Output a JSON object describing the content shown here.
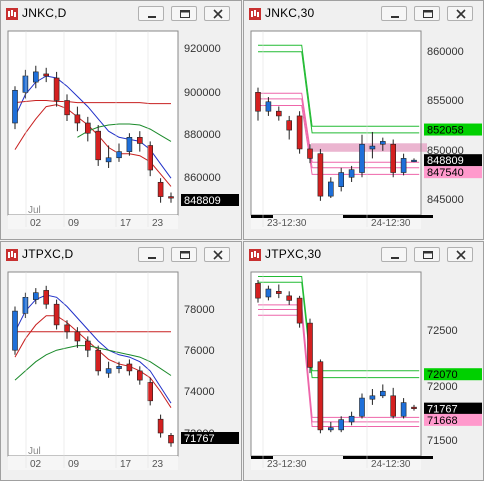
{
  "colors": {
    "background": "#ffffff",
    "up_candle": "#1e6fd9",
    "down_candle": "#d42020",
    "ma_blue": "#2030c8",
    "ma_red": "#c82020",
    "ma_green": "#1a8a2a",
    "band_green": "#22bb33",
    "band_pink": "#ee66aa",
    "label_green_bg": "#00d000",
    "label_pink_bg": "#ff99cc",
    "label_black_bg": "#000000",
    "label_black_fg": "#ffffff"
  },
  "window_controls": [
    "minimize-icon",
    "restore-icon",
    "close-icon"
  ],
  "windows": [
    {
      "title": "JNKC,D",
      "x_labels": [
        "02",
        "09",
        "17",
        "23"
      ],
      "x_top_label": "Jul",
      "y_labels": [
        "920000",
        "900000",
        "880000",
        "860000"
      ],
      "price_labels": [
        {
          "text": "848809",
          "style": "black"
        }
      ],
      "chart_data": {
        "type": "candlestick",
        "y_range": [
          840000,
          930000
        ],
        "candles": [
          [
            885000,
            901000,
            882000,
            903000
          ],
          [
            900000,
            908000,
            897000,
            911000
          ],
          [
            905000,
            910000,
            902000,
            913000
          ],
          [
            909000,
            908000,
            905000,
            912000
          ],
          [
            907000,
            896000,
            893000,
            910000
          ],
          [
            896000,
            889000,
            886000,
            899000
          ],
          [
            889000,
            885000,
            881000,
            893000
          ],
          [
            885000,
            880000,
            876000,
            888000
          ],
          [
            881000,
            867000,
            864000,
            884000
          ],
          [
            866000,
            868000,
            863000,
            874000
          ],
          [
            868000,
            871000,
            866000,
            875000
          ],
          [
            871000,
            878000,
            869000,
            880000
          ],
          [
            878000,
            875000,
            871000,
            881000
          ],
          [
            874000,
            862000,
            859000,
            876000
          ],
          [
            856000,
            849000,
            846000,
            858000
          ],
          [
            849000,
            848809,
            846000,
            851000
          ]
        ],
        "lines": [
          {
            "color": "ma_blue",
            "values": [
              888000,
              899000,
              905000,
              908000,
              907000,
              903000,
              898000,
              893000,
              887000,
              881000,
              878000,
              877000,
              876000,
              872000,
              865000,
              858000
            ]
          },
          {
            "color": "ma_red",
            "values": [
              872000,
              880000,
              887000,
              893000,
              894000,
              892000,
              888000,
              884000,
              879000,
              873000,
              870000,
              870000,
              869000,
              866000,
              860000,
              854000
            ]
          },
          {
            "color": "ma_red",
            "values": [
              895000,
              895500,
              896000,
              896000,
              895500,
              895500,
              895000,
              895000,
              895000,
              895000,
              895000,
              895000,
              895000,
              894500,
              894500,
              894500
            ]
          },
          {
            "color": "ma_green",
            "values": [
              null,
              null,
              null,
              null,
              null,
              null,
              878000,
              881000,
              883000,
              884000,
              884500,
              884500,
              884000,
              882000,
              879000,
              876000
            ]
          }
        ]
      }
    },
    {
      "title": "JNKC,30",
      "x_labels": [
        "23-12:30",
        "24-12:30"
      ],
      "x_top_label": "",
      "y_labels": [
        "860000",
        "855000",
        "850000",
        "845000"
      ],
      "price_labels": [
        {
          "text": "852058",
          "style": "green",
          "value": 852058
        },
        {
          "text": "848809",
          "style": "black",
          "value": 848809
        },
        {
          "text": "847540",
          "style": "pink",
          "value": 847540
        }
      ],
      "chart_data": {
        "type": "candlestick",
        "y_range": [
          843000,
          862500
        ],
        "shade_band": [
          849700,
          850600
        ],
        "candles": [
          [
            856000,
            854000,
            853000,
            856500
          ],
          [
            854000,
            855000,
            853500,
            855500
          ],
          [
            854000,
            853500,
            853000,
            854500
          ],
          [
            853000,
            852000,
            851000,
            853500
          ],
          [
            853500,
            850000,
            849500,
            854000
          ],
          [
            850000,
            849000,
            848500,
            850500
          ],
          [
            849500,
            845000,
            844500,
            850000
          ],
          [
            845000,
            846500,
            844800,
            847000
          ],
          [
            846000,
            847500,
            845500,
            848000
          ],
          [
            847000,
            847800,
            846500,
            848200
          ],
          [
            847500,
            850500,
            847000,
            851500
          ],
          [
            850000,
            850300,
            849000,
            851800
          ],
          [
            850500,
            850800,
            849800,
            851200
          ],
          [
            850500,
            847500,
            847000,
            851000
          ],
          [
            847500,
            849000,
            847200,
            849500
          ],
          [
            848800,
            848809,
            848600,
            849000
          ]
        ],
        "step_lines": [
          {
            "color": "band_green",
            "points": [
              [
                0,
                861000
              ],
              [
                4.2,
                861000
              ],
              [
                5.2,
                852400
              ],
              [
                15.5,
                852400
              ]
            ]
          },
          {
            "color": "band_green",
            "points": [
              [
                0,
                860300
              ],
              [
                4.2,
                860300
              ],
              [
                5.2,
                851700
              ],
              [
                15.5,
                851700
              ]
            ]
          },
          {
            "color": "band_pink",
            "points": [
              [
                0,
                855900
              ],
              [
                4.2,
                855900
              ],
              [
                5.2,
                848600
              ],
              [
                15.5,
                848600
              ]
            ]
          },
          {
            "color": "band_pink",
            "points": [
              [
                0,
                855300
              ],
              [
                4.2,
                855300
              ],
              [
                5.2,
                848000
              ],
              [
                15.5,
                848000
              ]
            ]
          },
          {
            "color": "band_pink",
            "points": [
              [
                0,
                854600
              ],
              [
                4.2,
                854600
              ],
              [
                5.2,
                847300
              ],
              [
                15.5,
                847300
              ]
            ]
          }
        ]
      }
    },
    {
      "title": "JTPXC,D",
      "x_labels": [
        "02",
        "09",
        "17",
        "23"
      ],
      "x_top_label": "Jul",
      "y_labels": [
        "78000",
        "76000",
        "74000",
        "72000"
      ],
      "price_labels": [
        {
          "text": "71767",
          "style": "black"
        }
      ],
      "chart_data": {
        "type": "candlestick",
        "y_range": [
          71200,
          79200
        ],
        "candles": [
          [
            75800,
            77500,
            75600,
            77700
          ],
          [
            77400,
            78100,
            77200,
            78300
          ],
          [
            78000,
            78300,
            77800,
            78500
          ],
          [
            78400,
            77800,
            77600,
            78600
          ],
          [
            77800,
            76900,
            76700,
            78000
          ],
          [
            76900,
            76600,
            76300,
            77100
          ],
          [
            76600,
            76200,
            75900,
            76800
          ],
          [
            76200,
            75800,
            75500,
            76400
          ],
          [
            75800,
            74900,
            74700,
            76000
          ],
          [
            74800,
            75000,
            74600,
            75300
          ],
          [
            75000,
            75100,
            74800,
            75300
          ],
          [
            75200,
            74900,
            74700,
            75400
          ],
          [
            74900,
            74500,
            74300,
            75100
          ],
          [
            74400,
            73600,
            73400,
            74600
          ],
          [
            72800,
            72200,
            72000,
            73000
          ],
          [
            72100,
            71767,
            71600,
            72200
          ]
        ],
        "lines": [
          {
            "color": "ma_blue",
            "values": [
              76600,
              77500,
              78000,
              78200,
              78100,
              77700,
              77200,
              76700,
              76200,
              75800,
              75600,
              75500,
              75300,
              74900,
              74200,
              73500
            ]
          },
          {
            "color": "ma_red",
            "values": [
              75500,
              76300,
              76900,
              77300,
              77300,
              77000,
              76600,
              76200,
              75800,
              75400,
              75200,
              75100,
              74900,
              74600,
              74000,
              73300
            ]
          },
          {
            "color": "ma_red",
            "values": [
              76600,
              76600,
              76600,
              76600,
              76600,
              76600,
              76600,
              76600,
              76600,
              76600,
              76600,
              76600,
              76600,
              76600,
              76600,
              76600
            ]
          },
          {
            "color": "ma_green",
            "values": [
              74500,
              74900,
              75300,
              75600,
              75800,
              75900,
              76000,
              76000,
              75900,
              75800,
              75700,
              75600,
              75500,
              75300,
              75000,
              74700
            ]
          }
        ]
      }
    },
    {
      "title": "JTPXC,30",
      "x_labels": [
        "23-12:30",
        "24-12:30"
      ],
      "x_top_label": "",
      "y_labels": [
        "72500",
        "72000",
        "71500"
      ],
      "price_labels": [
        {
          "text": "72070",
          "style": "green",
          "value": 72070
        },
        {
          "text": "71767",
          "style": "black",
          "value": 71767
        },
        {
          "text": "71668",
          "style": "pink",
          "value": 71668
        }
      ],
      "chart_data": {
        "type": "candlestick",
        "y_range": [
          71350,
          72970
        ],
        "candles": [
          [
            72870,
            72740,
            72700,
            72900
          ],
          [
            72750,
            72820,
            72720,
            72850
          ],
          [
            72800,
            72780,
            72740,
            72860
          ],
          [
            72760,
            72720,
            72680,
            72800
          ],
          [
            72740,
            72520,
            72480,
            72760
          ],
          [
            72520,
            72130,
            72080,
            72560
          ],
          [
            72180,
            71580,
            71550,
            72200
          ],
          [
            71580,
            71600,
            71560,
            71650
          ],
          [
            71580,
            71670,
            71560,
            71700
          ],
          [
            71650,
            71700,
            71620,
            71740
          ],
          [
            71700,
            71860,
            71680,
            71900
          ],
          [
            71850,
            71880,
            71800,
            71940
          ],
          [
            71880,
            71920,
            71860,
            71980
          ],
          [
            71880,
            71700,
            71680,
            71950
          ],
          [
            71700,
            71820,
            71680,
            71860
          ],
          [
            71780,
            71767,
            71750,
            71800
          ]
        ],
        "step_lines": [
          {
            "color": "band_green",
            "points": [
              [
                0,
                72930
              ],
              [
                4.2,
                72930
              ],
              [
                5.2,
                72100
              ],
              [
                15.5,
                72100
              ]
            ]
          },
          {
            "color": "band_green",
            "points": [
              [
                0,
                72880
              ],
              [
                4.2,
                72880
              ],
              [
                5.2,
                72040
              ],
              [
                15.5,
                72040
              ]
            ]
          },
          {
            "color": "band_pink",
            "points": [
              [
                0,
                72680
              ],
              [
                4.2,
                72680
              ],
              [
                5.2,
                71690
              ],
              [
                15.5,
                71690
              ]
            ]
          },
          {
            "color": "band_pink",
            "points": [
              [
                0,
                72640
              ],
              [
                4.2,
                72640
              ],
              [
                5.2,
                71650
              ],
              [
                15.5,
                71650
              ]
            ]
          },
          {
            "color": "band_pink",
            "points": [
              [
                0,
                72590
              ],
              [
                4.2,
                72590
              ],
              [
                5.2,
                71610
              ],
              [
                15.5,
                71610
              ]
            ]
          }
        ]
      }
    }
  ]
}
